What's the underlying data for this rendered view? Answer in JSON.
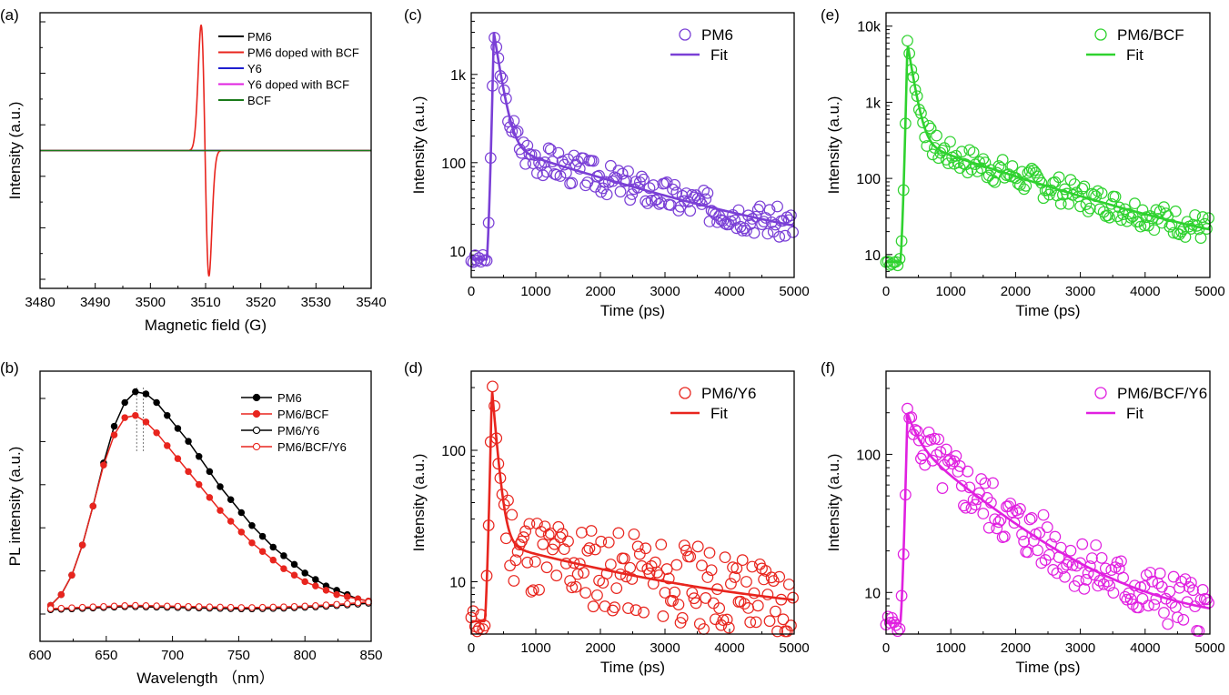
{
  "chart_data": [
    {
      "panel": "(a)",
      "type": "line",
      "title": "",
      "xlabel": "Magnetic field (G)",
      "ylabel": "Intensity (a.u.)",
      "xlim": [
        3480,
        3540
      ],
      "ylim": [
        -1,
        1
      ],
      "x_ticks": [
        3480,
        3490,
        3500,
        3510,
        3520,
        3530,
        3540
      ],
      "y_ticks_labeled": false,
      "legend_position": "top-right",
      "series": [
        {
          "name": "PM6",
          "color": "#000000",
          "shape": "flat",
          "center": 3510,
          "width": 1.2,
          "amplitude": 0
        },
        {
          "name": "PM6 doped with BCF",
          "color": "#e8251e",
          "shape": "derivative",
          "center": 3509.9,
          "width": 1.0,
          "amplitude": 0.95
        },
        {
          "name": "Y6",
          "color": "#1f1fd0",
          "shape": "flat",
          "center": 3510,
          "width": 1.2,
          "amplitude": 0
        },
        {
          "name": "Y6 doped with BCF",
          "color": "#e020e0",
          "shape": "flat",
          "center": 3510,
          "width": 1.2,
          "amplitude": 0
        },
        {
          "name": "BCF",
          "color": "#1a7a1a",
          "shape": "flat",
          "center": 3510,
          "width": 1.2,
          "amplitude": 0
        }
      ]
    },
    {
      "panel": "(b)",
      "type": "line",
      "title": "",
      "xlabel": "Wavelength （nm）",
      "ylabel": "PL intensity (a.u.)",
      "xlim": [
        600,
        850
      ],
      "ylim": [
        0,
        1.1
      ],
      "x_ticks": [
        600,
        650,
        700,
        750,
        800,
        850
      ],
      "y_ticks_labeled": false,
      "legend_position": "top-right",
      "peak_markers": [
        678,
        673
      ],
      "series": [
        {
          "name": "PM6",
          "color": "#000000",
          "marker": "filled",
          "x": [
            608,
            616,
            624,
            632,
            640,
            648,
            656,
            664,
            672,
            680,
            688,
            696,
            704,
            712,
            720,
            728,
            736,
            744,
            752,
            760,
            768,
            776,
            784,
            792,
            800,
            808,
            816,
            824,
            832,
            840,
            848
          ],
          "values": [
            0.04,
            0.09,
            0.18,
            0.32,
            0.5,
            0.7,
            0.87,
            0.98,
            1.03,
            1.02,
            0.98,
            0.92,
            0.86,
            0.8,
            0.73,
            0.66,
            0.59,
            0.53,
            0.47,
            0.41,
            0.36,
            0.31,
            0.27,
            0.23,
            0.19,
            0.16,
            0.13,
            0.11,
            0.09,
            0.07,
            0.06
          ]
        },
        {
          "name": "PM6/BCF",
          "color": "#e8251e",
          "marker": "filled",
          "x": [
            608,
            616,
            624,
            632,
            640,
            648,
            656,
            664,
            672,
            680,
            688,
            696,
            704,
            712,
            720,
            728,
            736,
            744,
            752,
            760,
            768,
            776,
            784,
            792,
            800,
            808,
            816,
            824,
            832,
            840,
            848
          ],
          "values": [
            0.04,
            0.09,
            0.18,
            0.32,
            0.5,
            0.69,
            0.83,
            0.91,
            0.92,
            0.89,
            0.84,
            0.78,
            0.72,
            0.66,
            0.6,
            0.54,
            0.48,
            0.43,
            0.38,
            0.33,
            0.29,
            0.25,
            0.21,
            0.18,
            0.15,
            0.13,
            0.11,
            0.09,
            0.08,
            0.07,
            0.06
          ]
        },
        {
          "name": "PM6/Y6",
          "color": "#000000",
          "marker": "open",
          "x": [
            608,
            616,
            624,
            632,
            640,
            648,
            656,
            664,
            672,
            680,
            688,
            696,
            704,
            712,
            720,
            728,
            736,
            744,
            752,
            760,
            768,
            776,
            784,
            792,
            800,
            808,
            816,
            824,
            832,
            840,
            848
          ],
          "values": [
            0.02,
            0.022,
            0.024,
            0.026,
            0.028,
            0.03,
            0.032,
            0.034,
            0.034,
            0.033,
            0.032,
            0.031,
            0.03,
            0.029,
            0.028,
            0.027,
            0.026,
            0.025,
            0.024,
            0.024,
            0.025,
            0.026,
            0.027,
            0.029,
            0.031,
            0.033,
            0.036,
            0.039,
            0.042,
            0.046,
            0.05
          ]
        },
        {
          "name": "PM6/BCF/Y6",
          "color": "#e8251e",
          "marker": "open",
          "x": [
            608,
            616,
            624,
            632,
            640,
            648,
            656,
            664,
            672,
            680,
            688,
            696,
            704,
            712,
            720,
            728,
            736,
            744,
            752,
            760,
            768,
            776,
            784,
            792,
            800,
            808,
            816,
            824,
            832,
            840,
            848
          ],
          "values": [
            0.025,
            0.027,
            0.029,
            0.031,
            0.033,
            0.035,
            0.037,
            0.039,
            0.04,
            0.039,
            0.038,
            0.037,
            0.036,
            0.035,
            0.034,
            0.033,
            0.032,
            0.031,
            0.03,
            0.03,
            0.031,
            0.032,
            0.033,
            0.035,
            0.037,
            0.039,
            0.042,
            0.045,
            0.048,
            0.052,
            0.056
          ]
        }
      ]
    },
    {
      "panel": "(c)",
      "type": "scatter",
      "title": "",
      "xlabel": "Time (ps)",
      "ylabel": "Intensity (a.u.)",
      "xlim": [
        0,
        5000
      ],
      "ylim": [
        5,
        5000
      ],
      "y_scale": "log",
      "x_ticks": [
        0,
        1000,
        2000,
        3000,
        4000,
        5000
      ],
      "y_ticks": [
        10,
        100,
        1000
      ],
      "y_tick_labels": [
        "10",
        "100",
        "1k"
      ],
      "legend_position": "top-right",
      "color": "#7a3fd6",
      "data_name": "PM6",
      "fit_name": "Fit",
      "decay": {
        "peak_time": 350,
        "peak": 3000,
        "baseline": 8,
        "a1": 0.95,
        "tau1": 90,
        "a2": 0.05,
        "tau2": 1800,
        "noise": 0.18,
        "seed": 3
      }
    },
    {
      "panel": "(d)",
      "type": "scatter",
      "title": "",
      "xlabel": "Time (ps)",
      "ylabel": "Intensity (a.u.)",
      "xlim": [
        0,
        5000
      ],
      "ylim": [
        4,
        400
      ],
      "y_scale": "log",
      "x_ticks": [
        0,
        1000,
        2000,
        3000,
        4000,
        5000
      ],
      "y_ticks": [
        10,
        100
      ],
      "y_tick_labels": [
        "10",
        "100"
      ],
      "legend_position": "top-right",
      "color": "#e8251e",
      "data_name": "PM6/Y6",
      "fit_name": "Fit",
      "decay": {
        "peak_time": 320,
        "peak": 300,
        "baseline": 5,
        "a1": 0.95,
        "tau1": 70,
        "a2": 0.05,
        "tau2": 2500,
        "noise": 0.32,
        "seed": 11
      }
    },
    {
      "panel": "(e)",
      "type": "scatter",
      "title": "",
      "xlabel": "Time (ps)",
      "ylabel": "Intensity (a.u.)",
      "xlim": [
        0,
        5000
      ],
      "ylim": [
        5,
        15000
      ],
      "y_scale": "log",
      "x_ticks": [
        0,
        1000,
        2000,
        3000,
        4000,
        5000
      ],
      "y_ticks": [
        10,
        100,
        1000,
        10000
      ],
      "y_tick_labels": [
        "10",
        "100",
        "1k",
        "10k"
      ],
      "legend_position": "top-right",
      "color": "#2fd22f",
      "data_name": "PM6/BCF",
      "fit_name": "Fit",
      "decay": {
        "peak_time": 330,
        "peak": 6000,
        "baseline": 8,
        "a1": 0.95,
        "tau1": 80,
        "a2": 0.05,
        "tau2": 1500,
        "noise": 0.18,
        "seed": 7
      }
    },
    {
      "panel": "(f)",
      "type": "scatter",
      "title": "",
      "xlabel": "Time (ps)",
      "ylabel": "Intensity (a.u.)",
      "xlim": [
        0,
        5000
      ],
      "ylim": [
        5,
        400
      ],
      "y_scale": "log",
      "x_ticks": [
        0,
        1000,
        2000,
        3000,
        4000,
        5000
      ],
      "y_ticks": [
        10,
        100
      ],
      "y_tick_labels": [
        "10",
        "100"
      ],
      "legend_position": "top-right",
      "color": "#e020e0",
      "data_name": "PM6/BCF/Y6",
      "fit_name": "Fit",
      "decay": {
        "peak_time": 330,
        "peak": 200,
        "baseline": 6,
        "a1": 0.4,
        "tau1": 150,
        "a2": 0.6,
        "tau2": 1100,
        "noise": 0.2,
        "seed": 5
      }
    }
  ]
}
